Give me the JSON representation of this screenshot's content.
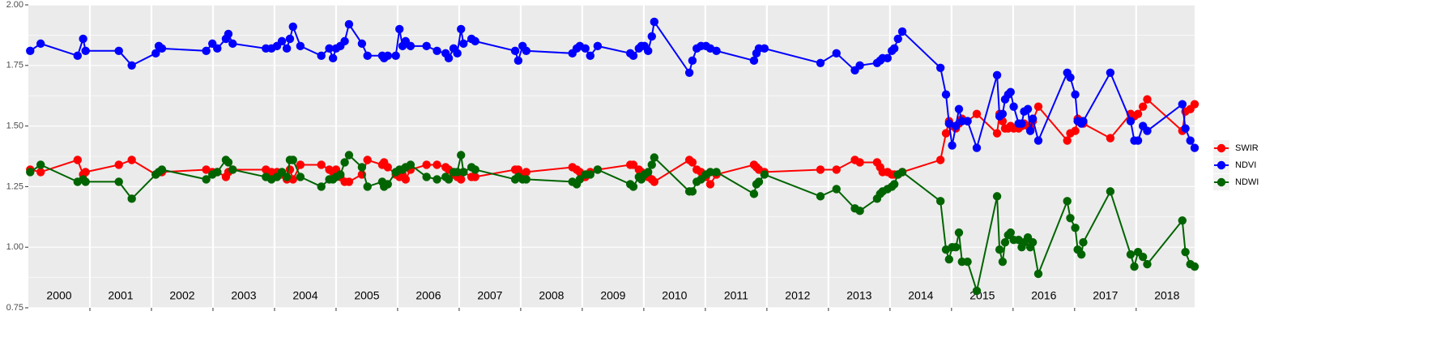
{
  "chart_data": {
    "type": "line",
    "x": [
      2000.03,
      2000.2,
      2000.8,
      2000.89,
      2000.93,
      2001.47,
      2001.68,
      2002.07,
      2002.12,
      2002.17,
      2002.89,
      2002.99,
      2003.07,
      2003.21,
      2003.25,
      2003.32,
      2003.86,
      2003.95,
      2004.04,
      2004.12,
      2004.2,
      2004.25,
      2004.3,
      2004.42,
      2004.76,
      2004.89,
      2004.95,
      2005.0,
      2005.07,
      2005.14,
      2005.21,
      2005.42,
      2005.51,
      2005.75,
      2005.78,
      2005.84,
      2005.97,
      2006.03,
      2006.08,
      2006.13,
      2006.21,
      2006.47,
      2006.64,
      2006.78,
      2006.83,
      2006.91,
      2006.97,
      2007.03,
      2007.07,
      2007.2,
      2007.26,
      2007.91,
      2007.96,
      2008.03,
      2008.09,
      2008.84,
      2008.91,
      2008.96,
      2009.05,
      2009.13,
      2009.25,
      2009.78,
      2009.83,
      2009.92,
      2009.96,
      2010.01,
      2010.07,
      2010.13,
      2010.17,
      2010.74,
      2010.79,
      2010.86,
      2010.93,
      2011.01,
      2011.08,
      2011.18,
      2011.79,
      2011.83,
      2011.87,
      2011.96,
      2012.87,
      2013.13,
      2013.43,
      2013.51,
      2013.79,
      2013.84,
      2013.88,
      2013.96,
      2014.03,
      2014.07,
      2014.13,
      2014.2,
      2014.82,
      2014.91,
      2014.96,
      2015.01,
      2015.07,
      2015.12,
      2015.17,
      2015.26,
      2015.41,
      2015.74,
      2015.78,
      2015.83,
      2015.87,
      2015.92,
      2015.96,
      2016.01,
      2016.09,
      2016.14,
      2016.18,
      2016.24,
      2016.28,
      2016.32,
      2016.41,
      2016.88,
      2016.93,
      2017.01,
      2017.05,
      2017.11,
      2017.14,
      2017.58,
      2017.91,
      2017.97,
      2018.03,
      2018.11,
      2018.18,
      2018.75,
      2018.8,
      2018.88,
      2018.95
    ],
    "series": [
      {
        "name": "SWIR",
        "color": "#ff0000",
        "values": [
          1.32,
          1.31,
          1.36,
          1.3,
          1.31,
          1.34,
          1.36,
          1.3,
          1.31,
          1.31,
          1.32,
          1.31,
          1.31,
          1.29,
          1.31,
          1.32,
          1.32,
          1.31,
          1.31,
          1.3,
          1.28,
          1.32,
          1.28,
          1.34,
          1.34,
          1.32,
          1.31,
          1.32,
          1.29,
          1.27,
          1.27,
          1.3,
          1.36,
          1.34,
          1.35,
          1.33,
          1.3,
          1.29,
          1.3,
          1.28,
          1.32,
          1.34,
          1.34,
          1.33,
          1.32,
          1.3,
          1.29,
          1.28,
          1.31,
          1.29,
          1.29,
          1.32,
          1.32,
          1.3,
          1.31,
          1.33,
          1.32,
          1.31,
          1.29,
          1.31,
          1.32,
          1.34,
          1.34,
          1.32,
          1.31,
          1.3,
          1.29,
          1.28,
          1.27,
          1.36,
          1.35,
          1.32,
          1.31,
          1.29,
          1.26,
          1.3,
          1.34,
          1.33,
          1.32,
          1.31,
          1.32,
          1.32,
          1.36,
          1.35,
          1.35,
          1.33,
          1.31,
          1.31,
          1.3,
          1.3,
          1.3,
          1.31,
          1.36,
          1.47,
          1.52,
          1.5,
          1.49,
          1.51,
          1.53,
          1.52,
          1.55,
          1.47,
          1.55,
          1.52,
          1.49,
          1.49,
          1.5,
          1.49,
          1.49,
          1.5,
          1.51,
          1.5,
          1.49,
          1.52,
          1.58,
          1.44,
          1.47,
          1.48,
          1.53,
          1.52,
          1.51,
          1.45,
          1.55,
          1.54,
          1.55,
          1.58,
          1.61,
          1.48,
          1.56,
          1.57,
          1.59
        ]
      },
      {
        "name": "NDVI",
        "color": "#0000ff",
        "values": [
          1.81,
          1.84,
          1.79,
          1.86,
          1.81,
          1.81,
          1.75,
          1.8,
          1.83,
          1.82,
          1.81,
          1.84,
          1.82,
          1.86,
          1.88,
          1.84,
          1.82,
          1.82,
          1.83,
          1.85,
          1.82,
          1.86,
          1.91,
          1.83,
          1.79,
          1.82,
          1.78,
          1.82,
          1.83,
          1.85,
          1.92,
          1.84,
          1.79,
          1.79,
          1.78,
          1.79,
          1.79,
          1.9,
          1.83,
          1.85,
          1.83,
          1.83,
          1.81,
          1.8,
          1.78,
          1.82,
          1.8,
          1.9,
          1.84,
          1.86,
          1.85,
          1.81,
          1.77,
          1.83,
          1.81,
          1.8,
          1.82,
          1.83,
          1.82,
          1.79,
          1.83,
          1.8,
          1.79,
          1.82,
          1.83,
          1.83,
          1.81,
          1.87,
          1.93,
          1.72,
          1.77,
          1.82,
          1.83,
          1.83,
          1.82,
          1.81,
          1.77,
          1.8,
          1.82,
          1.82,
          1.76,
          1.8,
          1.73,
          1.75,
          1.76,
          1.77,
          1.78,
          1.78,
          1.81,
          1.82,
          1.86,
          1.89,
          1.74,
          1.63,
          1.51,
          1.42,
          1.5,
          1.57,
          1.52,
          1.52,
          1.41,
          1.71,
          1.54,
          1.55,
          1.61,
          1.63,
          1.64,
          1.58,
          1.51,
          1.51,
          1.56,
          1.57,
          1.48,
          1.53,
          1.44,
          1.72,
          1.7,
          1.63,
          1.52,
          1.51,
          1.52,
          1.72,
          1.52,
          1.44,
          1.44,
          1.5,
          1.48,
          1.59,
          1.49,
          1.44,
          1.41
        ]
      },
      {
        "name": "NDWI",
        "color": "#006400",
        "values": [
          1.31,
          1.34,
          1.27,
          1.28,
          1.27,
          1.27,
          1.2,
          1.3,
          1.31,
          1.32,
          1.28,
          1.3,
          1.31,
          1.36,
          1.35,
          1.32,
          1.29,
          1.28,
          1.29,
          1.31,
          1.29,
          1.36,
          1.36,
          1.29,
          1.25,
          1.28,
          1.28,
          1.29,
          1.3,
          1.35,
          1.38,
          1.33,
          1.25,
          1.27,
          1.25,
          1.26,
          1.31,
          1.32,
          1.32,
          1.33,
          1.34,
          1.29,
          1.28,
          1.29,
          1.28,
          1.31,
          1.31,
          1.38,
          1.31,
          1.33,
          1.32,
          1.28,
          1.29,
          1.28,
          1.28,
          1.27,
          1.26,
          1.28,
          1.3,
          1.3,
          1.32,
          1.26,
          1.25,
          1.29,
          1.28,
          1.3,
          1.31,
          1.34,
          1.37,
          1.23,
          1.23,
          1.27,
          1.28,
          1.3,
          1.31,
          1.31,
          1.22,
          1.26,
          1.27,
          1.3,
          1.21,
          1.24,
          1.16,
          1.15,
          1.2,
          1.22,
          1.23,
          1.24,
          1.25,
          1.26,
          1.3,
          1.31,
          1.19,
          0.99,
          0.95,
          1.0,
          1.0,
          1.06,
          0.94,
          0.94,
          0.82,
          1.21,
          0.99,
          0.94,
          1.02,
          1.05,
          1.06,
          1.03,
          1.03,
          1.0,
          1.02,
          1.04,
          1.0,
          1.02,
          0.89,
          1.19,
          1.12,
          1.08,
          0.99,
          0.97,
          1.02,
          1.23,
          0.97,
          0.92,
          0.98,
          0.96,
          0.93,
          1.11,
          0.98,
          0.93,
          0.92
        ]
      }
    ],
    "xlim": [
      2000,
      2018.95
    ],
    "xticks": [
      2001,
      2002,
      2003,
      2004,
      2005,
      2006,
      2007,
      2008,
      2009,
      2010,
      2011,
      2012,
      2013,
      2014,
      2015,
      2016,
      2017,
      2018
    ],
    "year_labels": [
      "2000",
      "2001",
      "2002",
      "2003",
      "2004",
      "2005",
      "2006",
      "2007",
      "2008",
      "2009",
      "2010",
      "2011",
      "2012",
      "2013",
      "2014",
      "2015",
      "2016",
      "2017",
      "2018"
    ],
    "ylim": [
      0.75,
      2.0
    ],
    "yticks": [
      0.75,
      {
        "value": 1,
        "label": "1.00"
      },
      1.25,
      {
        "value": 1.5,
        "label": "1.50"
      },
      1.75,
      {
        "value": 2,
        "label": "2.00"
      }
    ],
    "grid": true,
    "legend": "right"
  }
}
